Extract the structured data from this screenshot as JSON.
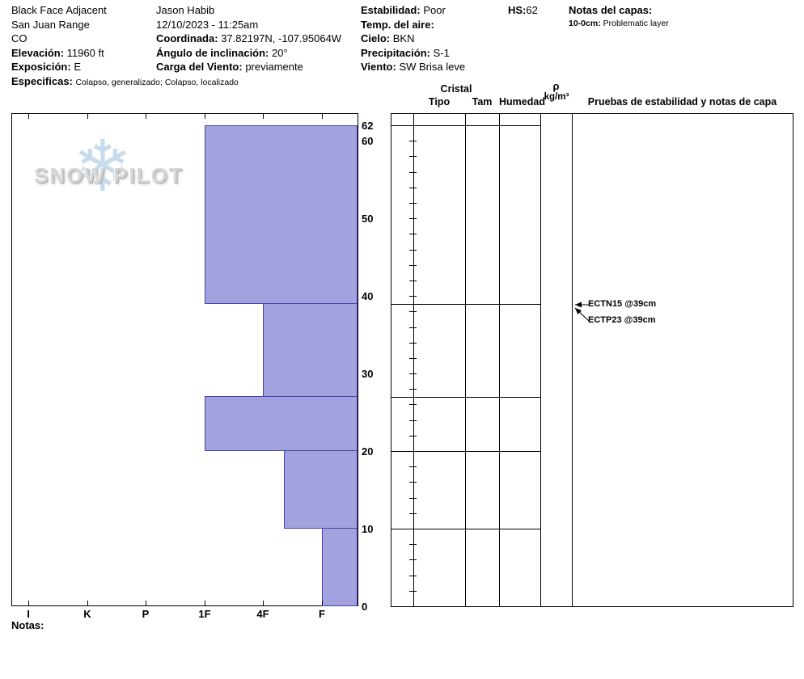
{
  "site": {
    "name": "Black Face Adjacent",
    "region": "San Juan Range",
    "state": "CO",
    "elevation_label": "Elevación:",
    "elevation_value": "11960 ft",
    "aspect_label": "Exposición:",
    "aspect_value": "E",
    "specifics_label": "Especificas:",
    "specifics_value": "Colapso, generalizado; Colapso, localizado"
  },
  "observer": {
    "name": "Jason Habib",
    "datetime": "12/10/2023 - 11:25am",
    "coordinates_label": "Coordinada:",
    "coordinates_value": "37.82197N, -107.95064W",
    "slope_angle_label": "Ángulo de inclinación:",
    "slope_angle_value": "20°",
    "wind_loading_label": "Carga del Viento:",
    "wind_loading_value": "previamente"
  },
  "conditions": {
    "stability_label": "Estabilidad:",
    "stability_value": "Poor",
    "air_temp_label": "Temp. del aire:",
    "air_temp_value": "",
    "sky_label": "Cielo:",
    "sky_value": "BKN",
    "precip_label": "Precipitación:",
    "precip_value": "S-1",
    "wind_label": "Viento:",
    "wind_value": "SW Brisa leve"
  },
  "snow_height": {
    "label": "HS:",
    "value": "62"
  },
  "layer_notes": {
    "title": "Notas del capas:",
    "items": [
      {
        "depth": "10-0cm:",
        "note": "Problematic layer"
      }
    ]
  },
  "logo": {
    "text": "SNOW PILOT"
  },
  "table": {
    "group_header": "Cristal",
    "col_tipo": "Tipo",
    "col_tam": "Tam",
    "col_humedad": "Humedad",
    "density_symbol": "ρ",
    "density_units": "kg/m³",
    "tests_header": "Pruebas de estabilidad y notas de capa"
  },
  "footer": {
    "notes_label": "Notas:"
  },
  "chart_data": {
    "type": "bar",
    "hardness_scale": [
      "I",
      "K",
      "P",
      "1F",
      "4F",
      "F"
    ],
    "depth_axis_ticks": [
      0,
      10,
      20,
      30,
      40,
      50,
      60,
      62
    ],
    "hs_cm": 62,
    "layers": [
      {
        "top_cm": 62,
        "bottom_cm": 39,
        "hardness": "1F",
        "hardness_index": 3
      },
      {
        "top_cm": 39,
        "bottom_cm": 27,
        "hardness": "4F",
        "hardness_index": 4
      },
      {
        "top_cm": 27,
        "bottom_cm": 20,
        "hardness": "1F",
        "hardness_index": 3
      },
      {
        "top_cm": 20,
        "bottom_cm": 10,
        "hardness": "4F-",
        "hardness_index": 4.35
      },
      {
        "top_cm": 10,
        "bottom_cm": 0,
        "hardness": "F",
        "hardness_index": 5
      }
    ],
    "stability_tests": [
      {
        "label": "ECTN15 @39cm",
        "depth_cm": 39
      },
      {
        "label": "ECTP23 @39cm",
        "depth_cm": 39
      }
    ],
    "bar_fill": "#a2a2de",
    "bar_stroke": "#4444a6"
  }
}
